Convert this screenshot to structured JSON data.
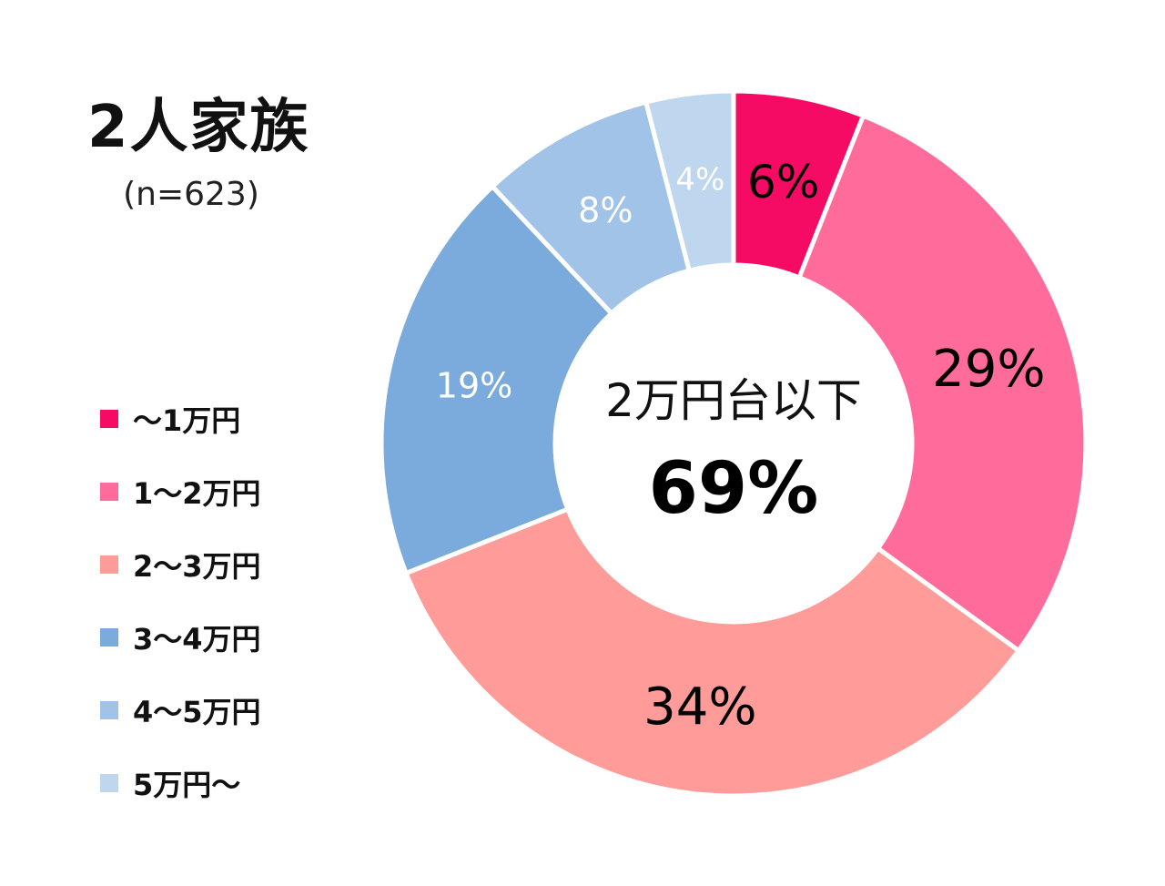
{
  "title": "2人家族",
  "sample_size": "(n=623)",
  "center": {
    "caption": "2万円台以下",
    "value": "69%"
  },
  "chart_data": {
    "type": "pie",
    "donut": true,
    "legend_position": "left",
    "series": [
      {
        "name": "～1万円",
        "value": 6,
        "label": "6%",
        "color": "#F50A64",
        "label_color": "#000000"
      },
      {
        "name": "1～2万円",
        "value": 29,
        "label": "29%",
        "color": "#FF6B9B",
        "label_color": "#000000"
      },
      {
        "name": "2～3万円",
        "value": 34,
        "label": "34%",
        "color": "#FF9C9A",
        "label_color": "#000000"
      },
      {
        "name": "3～4万円",
        "value": 19,
        "label": "19%",
        "color": "#7AABDC",
        "label_color": "#ffffff"
      },
      {
        "name": "4～5万円",
        "value": 8,
        "label": "8%",
        "color": "#A0C3E7",
        "label_color": "#ffffff"
      },
      {
        "name": "5万円～",
        "value": 4,
        "label": "4%",
        "color": "#BED7EE",
        "label_color": "#ffffff"
      }
    ]
  }
}
